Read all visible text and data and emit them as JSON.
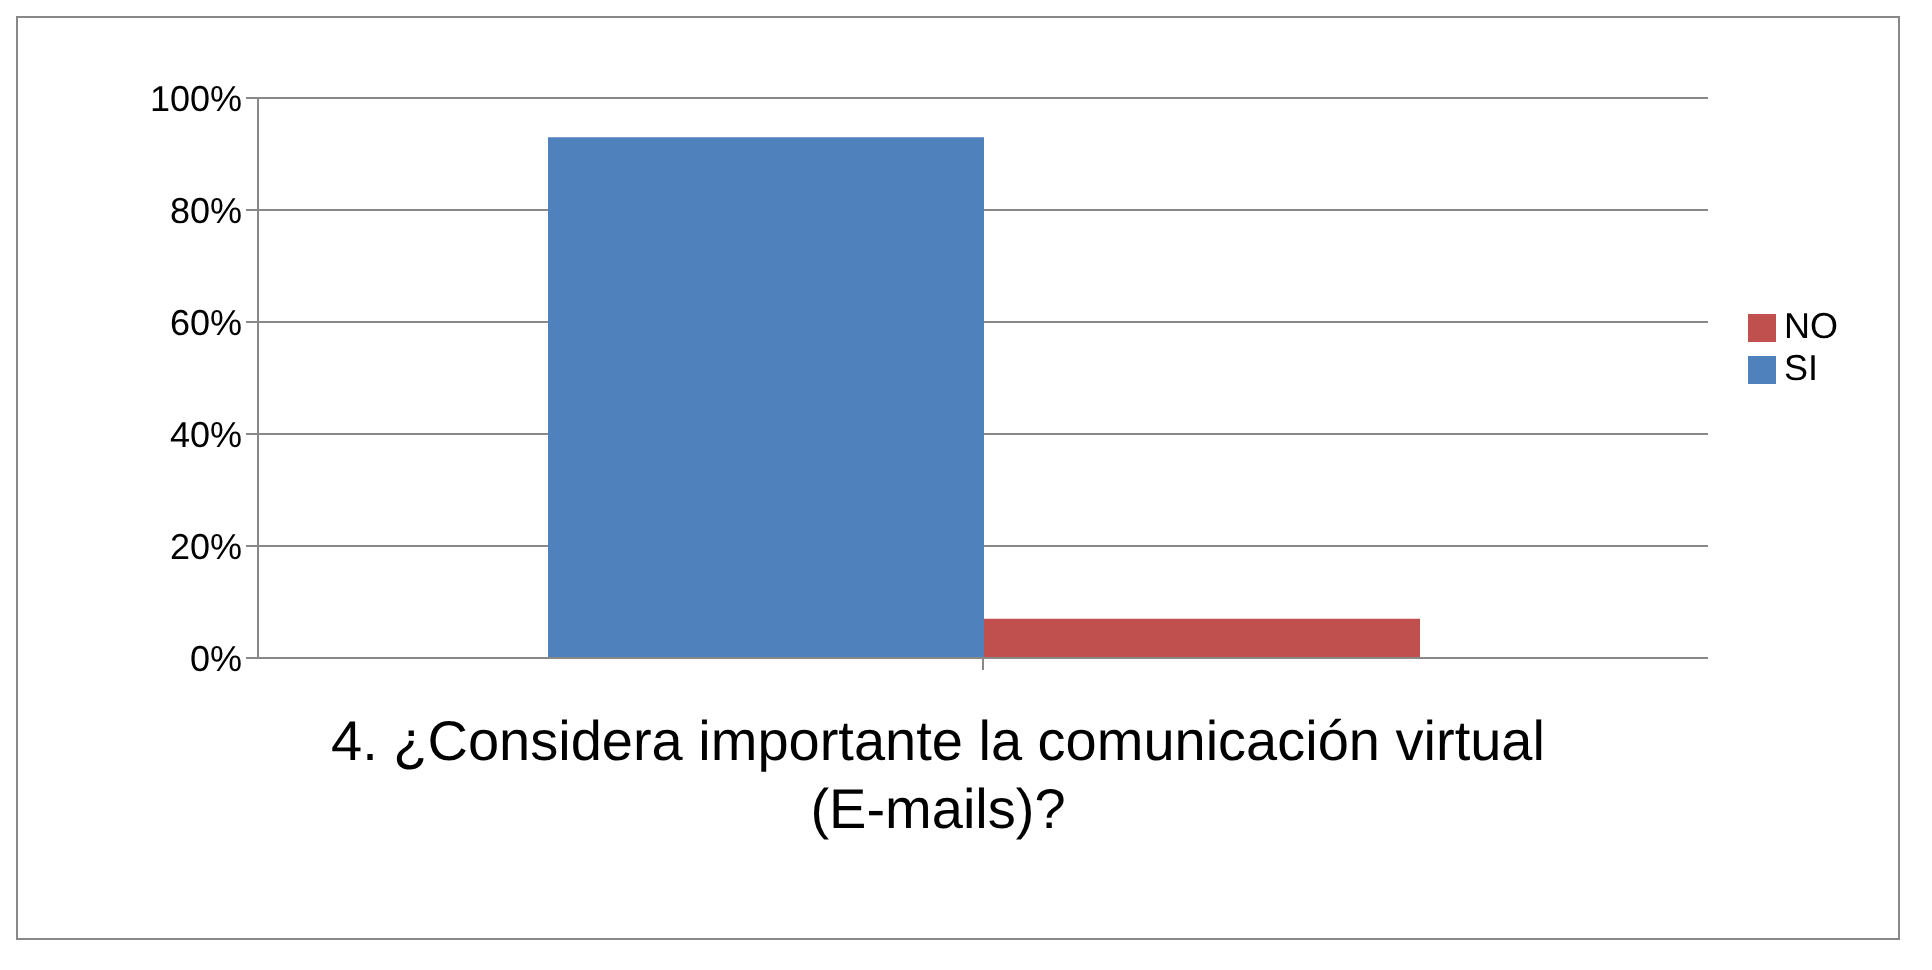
{
  "chart_data": {
    "type": "bar",
    "xlabel": "4. ¿Considera importante la comunicación virtual (E-mails)?",
    "categories": [
      null
    ],
    "series": [
      {
        "name": "SI",
        "color": "#4f81bd",
        "values": [
          93
        ]
      },
      {
        "name": "NO",
        "color": "#c0504d",
        "values": [
          7
        ]
      }
    ],
    "ylim": [
      0,
      100
    ],
    "yticks": [
      {
        "value": 0,
        "label": "0%"
      },
      {
        "value": 20,
        "label": "20%"
      },
      {
        "value": 40,
        "label": "40%"
      },
      {
        "value": 60,
        "label": "60%"
      },
      {
        "value": 80,
        "label": "80%"
      },
      {
        "value": 100,
        "label": "100%"
      }
    ],
    "grid": "y",
    "legend": "right"
  }
}
